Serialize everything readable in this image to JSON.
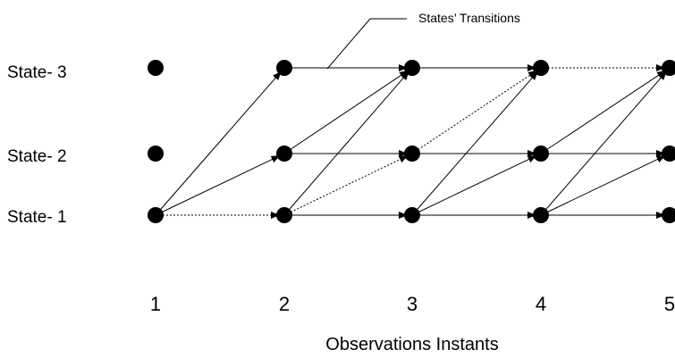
{
  "diagram": {
    "annotation": "States’ Transitions",
    "xlabel": "Observations Instants",
    "state_labels": [
      "State- 3",
      "State- 2",
      "State- 1"
    ],
    "instant_labels": [
      "1",
      "2",
      "3",
      "4",
      "5"
    ],
    "states": [
      {
        "id": 1,
        "label": "State- 1"
      },
      {
        "id": 2,
        "label": "State- 2"
      },
      {
        "id": 3,
        "label": "State- 3"
      }
    ],
    "instants": [
      1,
      2,
      3,
      4,
      5
    ],
    "transitions": [
      {
        "from_instant": 1,
        "from_state": 1,
        "to_state": 1,
        "style": "dotted"
      },
      {
        "from_instant": 1,
        "from_state": 1,
        "to_state": 2,
        "style": "solid"
      },
      {
        "from_instant": 1,
        "from_state": 1,
        "to_state": 3,
        "style": "solid"
      },
      {
        "from_instant": 2,
        "from_state": 1,
        "to_state": 1,
        "style": "solid"
      },
      {
        "from_instant": 2,
        "from_state": 1,
        "to_state": 2,
        "style": "dotted"
      },
      {
        "from_instant": 2,
        "from_state": 1,
        "to_state": 3,
        "style": "solid"
      },
      {
        "from_instant": 2,
        "from_state": 2,
        "to_state": 2,
        "style": "solid"
      },
      {
        "from_instant": 2,
        "from_state": 2,
        "to_state": 3,
        "style": "solid"
      },
      {
        "from_instant": 2,
        "from_state": 3,
        "to_state": 3,
        "style": "solid"
      },
      {
        "from_instant": 3,
        "from_state": 1,
        "to_state": 1,
        "style": "solid"
      },
      {
        "from_instant": 3,
        "from_state": 1,
        "to_state": 2,
        "style": "solid"
      },
      {
        "from_instant": 3,
        "from_state": 1,
        "to_state": 3,
        "style": "solid"
      },
      {
        "from_instant": 3,
        "from_state": 2,
        "to_state": 2,
        "style": "solid"
      },
      {
        "from_instant": 3,
        "from_state": 2,
        "to_state": 3,
        "style": "dotted"
      },
      {
        "from_instant": 3,
        "from_state": 3,
        "to_state": 3,
        "style": "solid"
      },
      {
        "from_instant": 4,
        "from_state": 1,
        "to_state": 1,
        "style": "solid"
      },
      {
        "from_instant": 4,
        "from_state": 1,
        "to_state": 2,
        "style": "solid"
      },
      {
        "from_instant": 4,
        "from_state": 1,
        "to_state": 3,
        "style": "solid"
      },
      {
        "from_instant": 4,
        "from_state": 2,
        "to_state": 2,
        "style": "solid"
      },
      {
        "from_instant": 4,
        "from_state": 2,
        "to_state": 3,
        "style": "solid"
      },
      {
        "from_instant": 4,
        "from_state": 3,
        "to_state": 3,
        "style": "dotted"
      }
    ]
  }
}
